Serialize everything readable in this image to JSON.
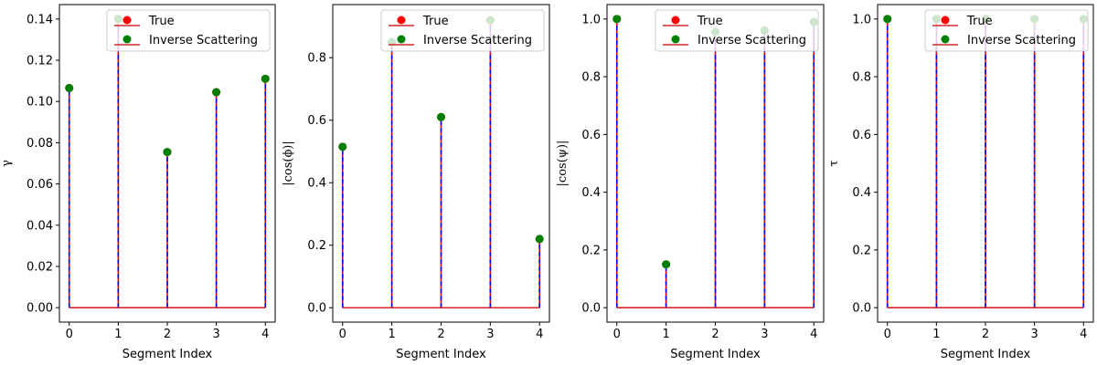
{
  "chart_data": [
    {
      "type": "stem",
      "xlabel": "Segment Index",
      "ylabel": "γ",
      "x": [
        0,
        1,
        2,
        3,
        4
      ],
      "ylim": [
        -0.007,
        0.147
      ],
      "xticks": [
        "0",
        "1",
        "2",
        "3",
        "4"
      ],
      "yticks": [
        0.0,
        0.02,
        0.04,
        0.06,
        0.08,
        0.1,
        0.12,
        0.14
      ],
      "ytick_labels": [
        "0.00",
        "0.02",
        "0.04",
        "0.06",
        "0.08",
        "0.10",
        "0.12",
        "0.14"
      ],
      "series": [
        {
          "name": "True",
          "values": [
            0.1065,
            0.14,
            0.0755,
            0.1045,
            0.111
          ]
        },
        {
          "name": "Inverse Scattering",
          "values": [
            0.1065,
            0.14,
            0.0755,
            0.1045,
            0.111
          ]
        }
      ],
      "legend": "top-right"
    },
    {
      "type": "stem",
      "xlabel": "Segment Index",
      "ylabel": "|cos(ϕ)|",
      "x": [
        0,
        1,
        2,
        3,
        4
      ],
      "ylim": [
        -0.046,
        0.97
      ],
      "xticks": [
        "0",
        "1",
        "2",
        "3",
        "4"
      ],
      "yticks": [
        0.0,
        0.2,
        0.4,
        0.6,
        0.8
      ],
      "ytick_labels": [
        "0.0",
        "0.2",
        "0.4",
        "0.6",
        "0.8"
      ],
      "series": [
        {
          "name": "True",
          "values": [
            0.515,
            0.85,
            0.61,
            0.92,
            0.22
          ]
        },
        {
          "name": "Inverse Scattering",
          "values": [
            0.515,
            0.85,
            0.61,
            0.92,
            0.22
          ]
        }
      ],
      "legend": "top-right"
    },
    {
      "type": "stem",
      "xlabel": "Segment Index",
      "ylabel": "|cos(ψ)|",
      "x": [
        0,
        1,
        2,
        3,
        4
      ],
      "ylim": [
        -0.05,
        1.05
      ],
      "xticks": [
        "0",
        "1",
        "2",
        "3",
        "4"
      ],
      "yticks": [
        0.0,
        0.2,
        0.4,
        0.6,
        0.8,
        1.0
      ],
      "ytick_labels": [
        "0.0",
        "0.2",
        "0.4",
        "0.6",
        "0.8",
        "1.0"
      ],
      "series": [
        {
          "name": "True",
          "values": [
            1.0,
            0.15,
            0.955,
            0.96,
            0.99
          ]
        },
        {
          "name": "Inverse Scattering",
          "values": [
            1.0,
            0.15,
            0.955,
            0.96,
            0.99
          ]
        }
      ],
      "legend": "top-right"
    },
    {
      "type": "stem",
      "xlabel": "Segment Index",
      "ylabel": "τ",
      "x": [
        0,
        1,
        2,
        3,
        4
      ],
      "ylim": [
        -0.05,
        1.05
      ],
      "xticks": [
        "0",
        "1",
        "2",
        "3",
        "4"
      ],
      "yticks": [
        0.0,
        0.2,
        0.4,
        0.6,
        0.8,
        1.0
      ],
      "ytick_labels": [
        "0.0",
        "0.2",
        "0.4",
        "0.6",
        "0.8",
        "1.0"
      ],
      "series": [
        {
          "name": "True",
          "values": [
            1.0,
            1.0,
            1.0,
            1.0,
            1.0
          ]
        },
        {
          "name": "Inverse Scattering",
          "values": [
            1.0,
            1.0,
            1.0,
            1.0,
            1.0
          ]
        }
      ],
      "legend": "top-right"
    }
  ],
  "colors": {
    "true_marker": "#ff0000",
    "true_baseline": "#d62728",
    "inverse_marker": "#008000",
    "stem_blue": "#0000ff",
    "stem_red": "#ff0000",
    "axis": "#000000"
  }
}
